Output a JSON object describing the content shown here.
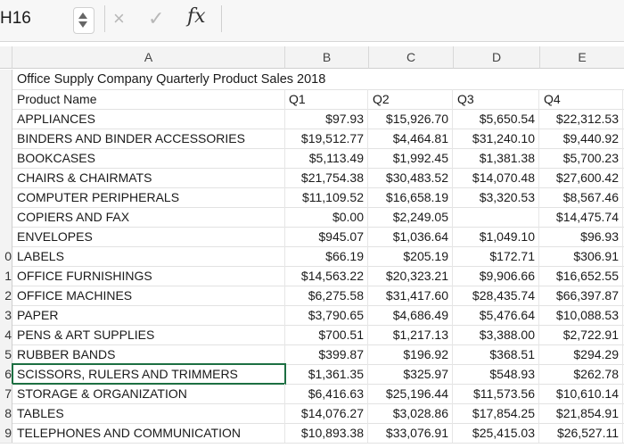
{
  "formula_bar": {
    "cell_ref": "H16",
    "cancel_icon": "×",
    "enter_icon": "✓",
    "fx_label": "fx",
    "formula_value": ""
  },
  "columns": [
    "A",
    "B",
    "C",
    "D",
    "E"
  ],
  "title": "Office Supply Company Quarterly Product Sales 2018",
  "header_row": {
    "product": "Product Name",
    "q1": "Q1",
    "q2": "Q2",
    "q3": "Q3",
    "q4": "Q4"
  },
  "row_numbers_prefix": [
    "",
    "",
    "",
    "",
    "",
    "",
    "",
    "",
    "",
    "0",
    "1",
    "2",
    "3",
    "4",
    "5",
    "6",
    "7",
    "8",
    "9"
  ],
  "rows": [
    {
      "name": "APPLIANCES",
      "q1": "$97.93",
      "q2": "$15,926.70",
      "q3": "$5,650.54",
      "q4": "$22,312.53"
    },
    {
      "name": "BINDERS AND BINDER ACCESSORIES",
      "q1": "$19,512.77",
      "q2": "$4,464.81",
      "q3": "$31,240.10",
      "q4": "$9,440.92"
    },
    {
      "name": "BOOKCASES",
      "q1": "$5,113.49",
      "q2": "$1,992.45",
      "q3": "$1,381.38",
      "q4": "$5,700.23"
    },
    {
      "name": "CHAIRS & CHAIRMATS",
      "q1": "$21,754.38",
      "q2": "$30,483.52",
      "q3": "$14,070.48",
      "q4": "$27,600.42"
    },
    {
      "name": "COMPUTER PERIPHERALS",
      "q1": "$11,109.52",
      "q2": "$16,658.19",
      "q3": "$3,320.53",
      "q4": "$8,567.46"
    },
    {
      "name": "COPIERS AND FAX",
      "q1": "$0.00",
      "q2": "$2,249.05",
      "q3": "",
      "q4": "$14,475.74"
    },
    {
      "name": "ENVELOPES",
      "q1": "$945.07",
      "q2": "$1,036.64",
      "q3": "$1,049.10",
      "q4": "$96.93"
    },
    {
      "name": "LABELS",
      "q1": "$66.19",
      "q2": "$205.19",
      "q3": "$172.71",
      "q4": "$306.91"
    },
    {
      "name": "OFFICE FURNISHINGS",
      "q1": "$14,563.22",
      "q2": "$20,323.21",
      "q3": "$9,906.66",
      "q4": "$16,652.55"
    },
    {
      "name": "OFFICE MACHINES",
      "q1": "$6,275.58",
      "q2": "$31,417.60",
      "q3": "$28,435.74",
      "q4": "$66,397.87"
    },
    {
      "name": "PAPER",
      "q1": "$3,790.65",
      "q2": "$4,686.49",
      "q3": "$5,476.64",
      "q4": "$10,088.53"
    },
    {
      "name": "PENS & ART SUPPLIES",
      "q1": "$700.51",
      "q2": "$1,217.13",
      "q3": "$3,388.00",
      "q4": "$2,722.91"
    },
    {
      "name": "RUBBER BANDS",
      "q1": "$399.87",
      "q2": "$196.92",
      "q3": "$368.51",
      "q4": "$294.29"
    },
    {
      "name": "SCISSORS, RULERS AND TRIMMERS",
      "q1": "$1,361.35",
      "q2": "$325.97",
      "q3": "$548.93",
      "q4": "$262.78"
    },
    {
      "name": "STORAGE & ORGANIZATION",
      "q1": "$6,416.63",
      "q2": "$25,196.44",
      "q3": "$11,573.56",
      "q4": "$10,610.14"
    },
    {
      "name": "TABLES",
      "q1": "$14,076.27",
      "q2": "$3,028.86",
      "q3": "$17,854.25",
      "q4": "$21,854.91"
    },
    {
      "name": "TELEPHONES AND COMMUNICATION",
      "q1": "$10,893.38",
      "q2": "$33,076.91",
      "q3": "$25,415.03",
      "q4": "$26,527.11"
    }
  ],
  "row_labels": [
    "",
    "",
    "",
    "",
    "",
    "",
    "0",
    "1",
    "2",
    "3",
    "4",
    "5",
    "6",
    "7",
    "8",
    "9"
  ]
}
